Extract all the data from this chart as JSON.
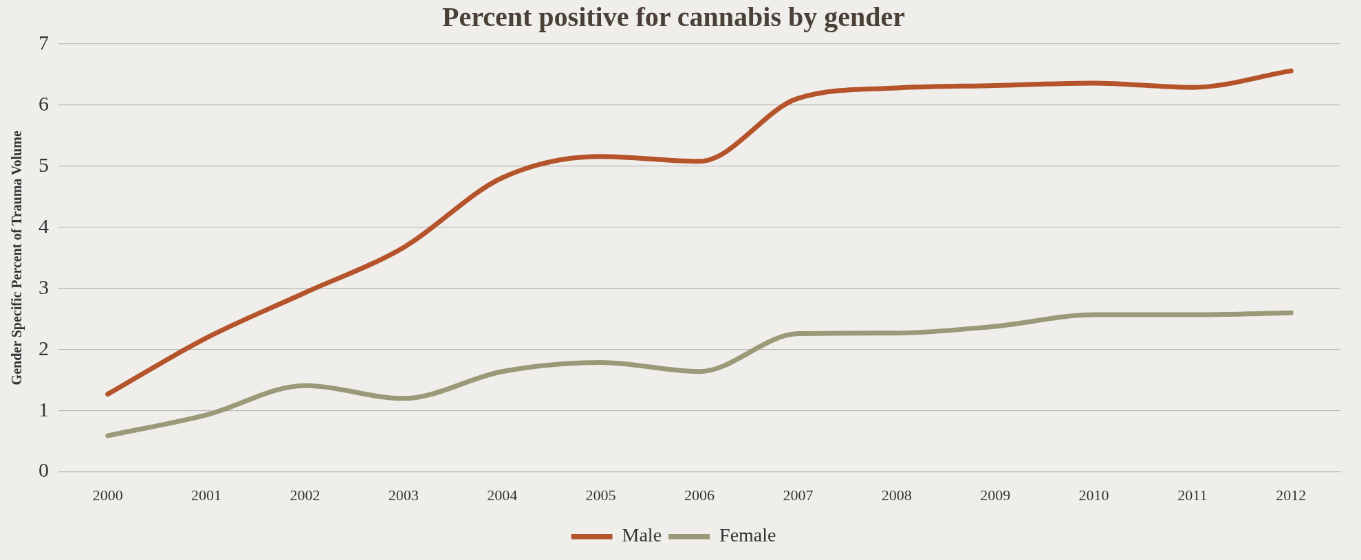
{
  "chart_data": {
    "type": "line",
    "title": "Percent positive for cannabis by gender",
    "ylabel": "Gender Specific Percent of Trauma Volume",
    "categories": [
      "2000",
      "2001",
      "2002",
      "2003",
      "2004",
      "2005",
      "2006",
      "2007",
      "2008",
      "2009",
      "2010",
      "2011",
      "2012"
    ],
    "series": [
      {
        "name": "Male",
        "color": "#b5532a",
        "values": [
          1.27,
          2.19,
          2.93,
          3.67,
          4.81,
          5.16,
          5.08,
          6.11,
          6.28,
          6.32,
          6.36,
          6.29,
          6.56
        ]
      },
      {
        "name": "Female",
        "color": "#9a9a78",
        "values": [
          0.59,
          0.93,
          1.41,
          1.2,
          1.64,
          1.79,
          1.64,
          2.26,
          2.27,
          2.38,
          2.57,
          2.57,
          2.6
        ]
      }
    ],
    "ylim": [
      0,
      7
    ],
    "yticks": [
      0,
      1,
      2,
      3,
      4,
      5,
      6,
      7
    ],
    "grid": "y",
    "legend": "bottom",
    "marker": "none",
    "line_style": "solid"
  }
}
